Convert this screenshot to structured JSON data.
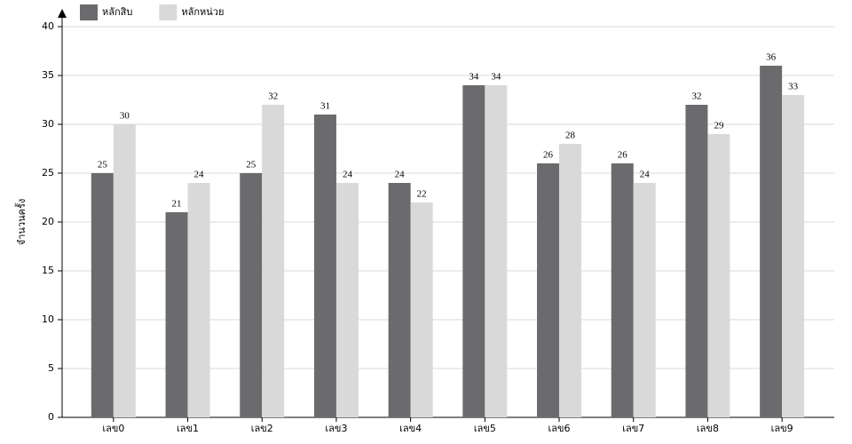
{
  "chart_data": {
    "type": "bar",
    "y_label": "จำนวนครั้ง",
    "categories": [
      "เลข0",
      "เลข1",
      "เลข2",
      "เลข3",
      "เลข4",
      "เลข5",
      "เลข6",
      "เลข7",
      "เลข8",
      "เลข9"
    ],
    "series": [
      {
        "name": "หลักสิบ",
        "color": "#6b6b6d",
        "values": [
          25,
          21,
          25,
          31,
          24,
          34,
          26,
          26,
          32,
          36
        ]
      },
      {
        "name": "หลักหน่วย",
        "color": "#d9d9d9",
        "values": [
          30,
          24,
          32,
          24,
          22,
          34,
          28,
          24,
          29,
          33
        ]
      }
    ],
    "ylim": [
      0,
      40
    ],
    "yticks": [
      0,
      5,
      10,
      15,
      20,
      25,
      30,
      35,
      40
    ],
    "grid": true,
    "legend": "top-left"
  }
}
